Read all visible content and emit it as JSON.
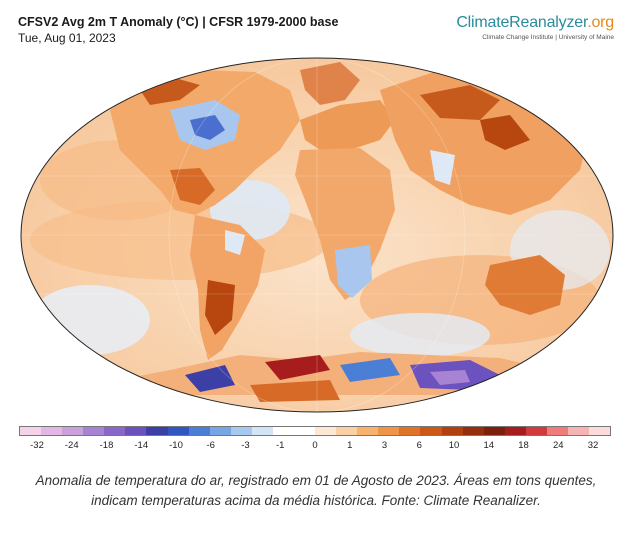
{
  "header": {
    "title": "CFSV2 Avg 2m T Anomaly (°C) | CFSR 1979-2000 base",
    "date": "Tue, Aug 01, 2023"
  },
  "brand": {
    "name_main": "ClimateReanalyzer",
    "name_suffix": ".org",
    "subtitle": "Climate Change Institute | University of Maine"
  },
  "colorbar": {
    "tick_labels": [
      "-32",
      "-24",
      "-18",
      "-14",
      "-10",
      "-6",
      "-3",
      "-1",
      "0",
      "1",
      "3",
      "6",
      "10",
      "14",
      "18",
      "24",
      "32"
    ],
    "colors": [
      "#f3d3ea",
      "#e2b8e3",
      "#cba0dd",
      "#a983d3",
      "#8a68c8",
      "#6b52bf",
      "#3c3fa6",
      "#2f56c1",
      "#4b7fd6",
      "#78a6e3",
      "#a7c8ef",
      "#d3e4f7",
      "#ffffff",
      "#ffffff",
      "#fde9d3",
      "#fbd0a4",
      "#f7b26f",
      "#f09448",
      "#e07426",
      "#cc5716",
      "#b24010",
      "#962e0c",
      "#7e1f0a",
      "#a71d1d",
      "#d23b3b",
      "#ef7c7c",
      "#f6b3b3",
      "#fbdcdc"
    ]
  },
  "caption": "Anomalia de temperatura do ar, registrado em 01 de Agosto de 2023. Áreas em tons quentes, indicam temperaturas acima da média histórica. Fonte: Climate Reanalizer.",
  "colors": {
    "warm_anomaly": "#f2a766",
    "strong_warm": "#b8460f",
    "cool_anomaly": "#a9c7ee",
    "strong_cool": "#6a4ed0"
  }
}
